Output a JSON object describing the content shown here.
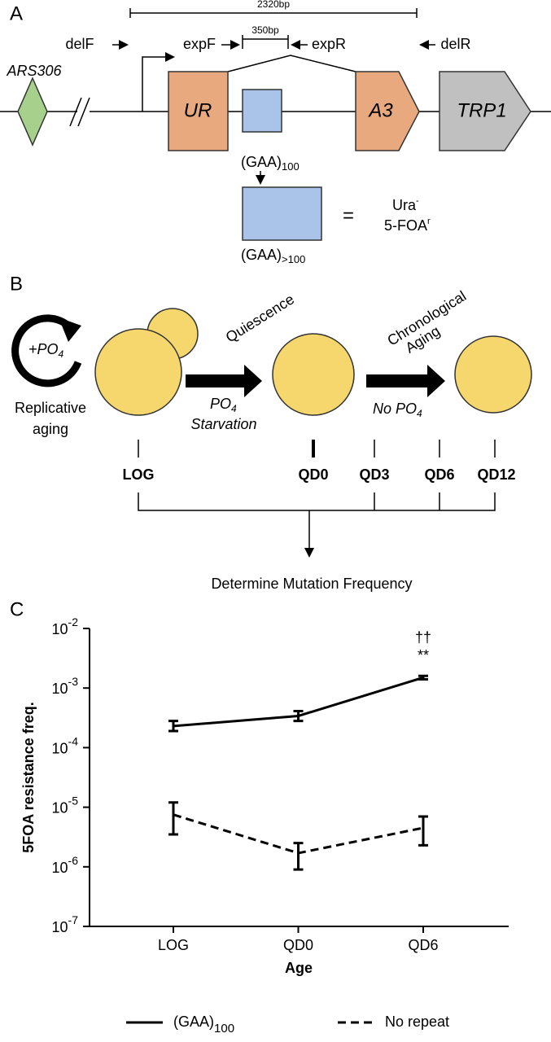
{
  "panel_a": {
    "label": "A",
    "scale_bar": "2320bp",
    "inner_scale_bar": "350bp",
    "primers": [
      "delF",
      "expF",
      "expR",
      "delR"
    ],
    "origin": "ARS306",
    "genes": [
      "UR",
      "A3",
      "TRP1"
    ],
    "repeat": {
      "text": "(GAA)",
      "sub": "100"
    },
    "expanded_repeat": {
      "text": "(GAA)",
      "sub": ">100"
    },
    "equals": "=",
    "phenotype": {
      "ura": "Ura",
      "ura_sup": "-",
      "foa": "5-FOA",
      "foa_sup": "r"
    }
  },
  "panel_b": {
    "label": "B",
    "plus_po4": {
      "text": "+PO",
      "sub": "4"
    },
    "replicative": [
      "Replicative",
      "aging"
    ],
    "quiescence": "Quiescence",
    "starvation": {
      "text": "PO",
      "sub": "4",
      "line2": "Starvation"
    },
    "chronological": [
      "Chronological",
      "Aging"
    ],
    "no_po4": {
      "text": "No PO",
      "sub": "4"
    },
    "stages": [
      "LOG",
      "QD0",
      "QD3",
      "QD6",
      "QD12"
    ],
    "outcome": "Determine Mutation Frequency"
  },
  "panel_c": {
    "label": "C"
  },
  "chart_data": {
    "type": "line",
    "y_label": "5FOA resistance freq.",
    "x_label": "Age",
    "categories": [
      "LOG",
      "QD0",
      "QD6"
    ],
    "log_scale": true,
    "ylim": [
      1e-07,
      0.01
    ],
    "yticks": [
      {
        "value": 1e-07,
        "label": "10",
        "exponent": "-7"
      },
      {
        "value": 1e-06,
        "label": "10",
        "exponent": "-6"
      },
      {
        "value": 1e-05,
        "label": "10",
        "exponent": "-5"
      },
      {
        "value": 0.0001,
        "label": "10",
        "exponent": "-4"
      },
      {
        "value": 0.001,
        "label": "10",
        "exponent": "-3"
      },
      {
        "value": 0.01,
        "label": "10",
        "exponent": "-2"
      }
    ],
    "series": [
      {
        "name": "(GAA)",
        "name_subscript": "100",
        "color": "#000000",
        "line_style": "solid",
        "values": [
          0.00023,
          0.00034,
          0.0015
        ],
        "lower": [
          0.00019,
          0.00028,
          0.0014
        ],
        "upper": [
          0.00028,
          0.00041,
          0.0016
        ]
      },
      {
        "name": "No repeat",
        "color": "#000000",
        "line_style": "dashed",
        "values": [
          7.5e-06,
          1.7e-06,
          4.5e-06
        ],
        "lower": [
          3.5e-06,
          9e-07,
          2.3e-06
        ],
        "upper": [
          1.2e-05,
          2.5e-06,
          7e-06
        ]
      }
    ],
    "annotations": [
      "††",
      "**"
    ]
  }
}
